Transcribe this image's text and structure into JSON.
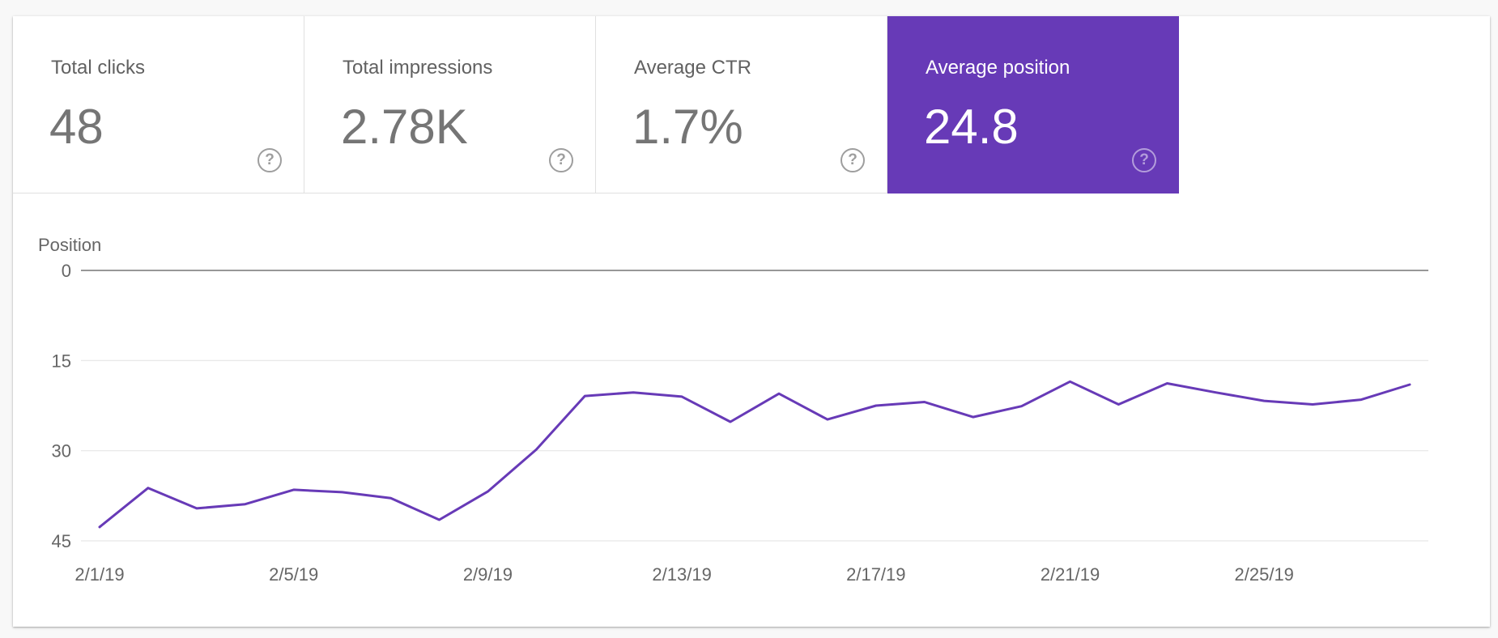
{
  "metrics": [
    {
      "label": "Total clicks",
      "value": "48",
      "active": false
    },
    {
      "label": "Total impressions",
      "value": "2.78K",
      "active": false
    },
    {
      "label": "Average CTR",
      "value": "1.7%",
      "active": false
    },
    {
      "label": "Average position",
      "value": "24.8",
      "active": true
    }
  ],
  "help_icon": "help-circle-icon",
  "colors": {
    "accent": "#673ab7",
    "line": "#673ab7",
    "grid": "#e6e6e6",
    "baseline": "#757575"
  },
  "chart_data": {
    "type": "line",
    "title": "",
    "ylabel": "Position",
    "xlabel": "",
    "y_inverted": true,
    "ylim": [
      0,
      45
    ],
    "yticks": [
      0,
      15,
      30,
      45
    ],
    "xtick_labels": [
      "2/1/19",
      "2/5/19",
      "2/9/19",
      "2/13/19",
      "2/17/19",
      "2/21/19",
      "2/25/19"
    ],
    "grid": true,
    "x": [
      "2/1/19",
      "2/2/19",
      "2/3/19",
      "2/4/19",
      "2/5/19",
      "2/6/19",
      "2/7/19",
      "2/8/19",
      "2/9/19",
      "2/10/19",
      "2/11/19",
      "2/12/19",
      "2/13/19",
      "2/14/19",
      "2/15/19",
      "2/16/19",
      "2/17/19",
      "2/18/19",
      "2/19/19",
      "2/20/19",
      "2/21/19",
      "2/22/19",
      "2/23/19",
      "2/24/19",
      "2/25/19",
      "2/26/19",
      "2/27/19",
      "2/28/19"
    ],
    "series": [
      {
        "values": [
          42.7,
          36.2,
          39.6,
          38.9,
          36.5,
          36.9,
          37.9,
          41.5,
          36.8,
          29.8,
          20.9,
          20.3,
          21.0,
          25.2,
          20.5,
          24.8,
          22.5,
          21.9,
          24.4,
          22.6,
          18.5,
          22.3,
          18.8,
          20.3,
          21.7,
          22.3,
          21.5,
          19.0
        ]
      }
    ]
  }
}
